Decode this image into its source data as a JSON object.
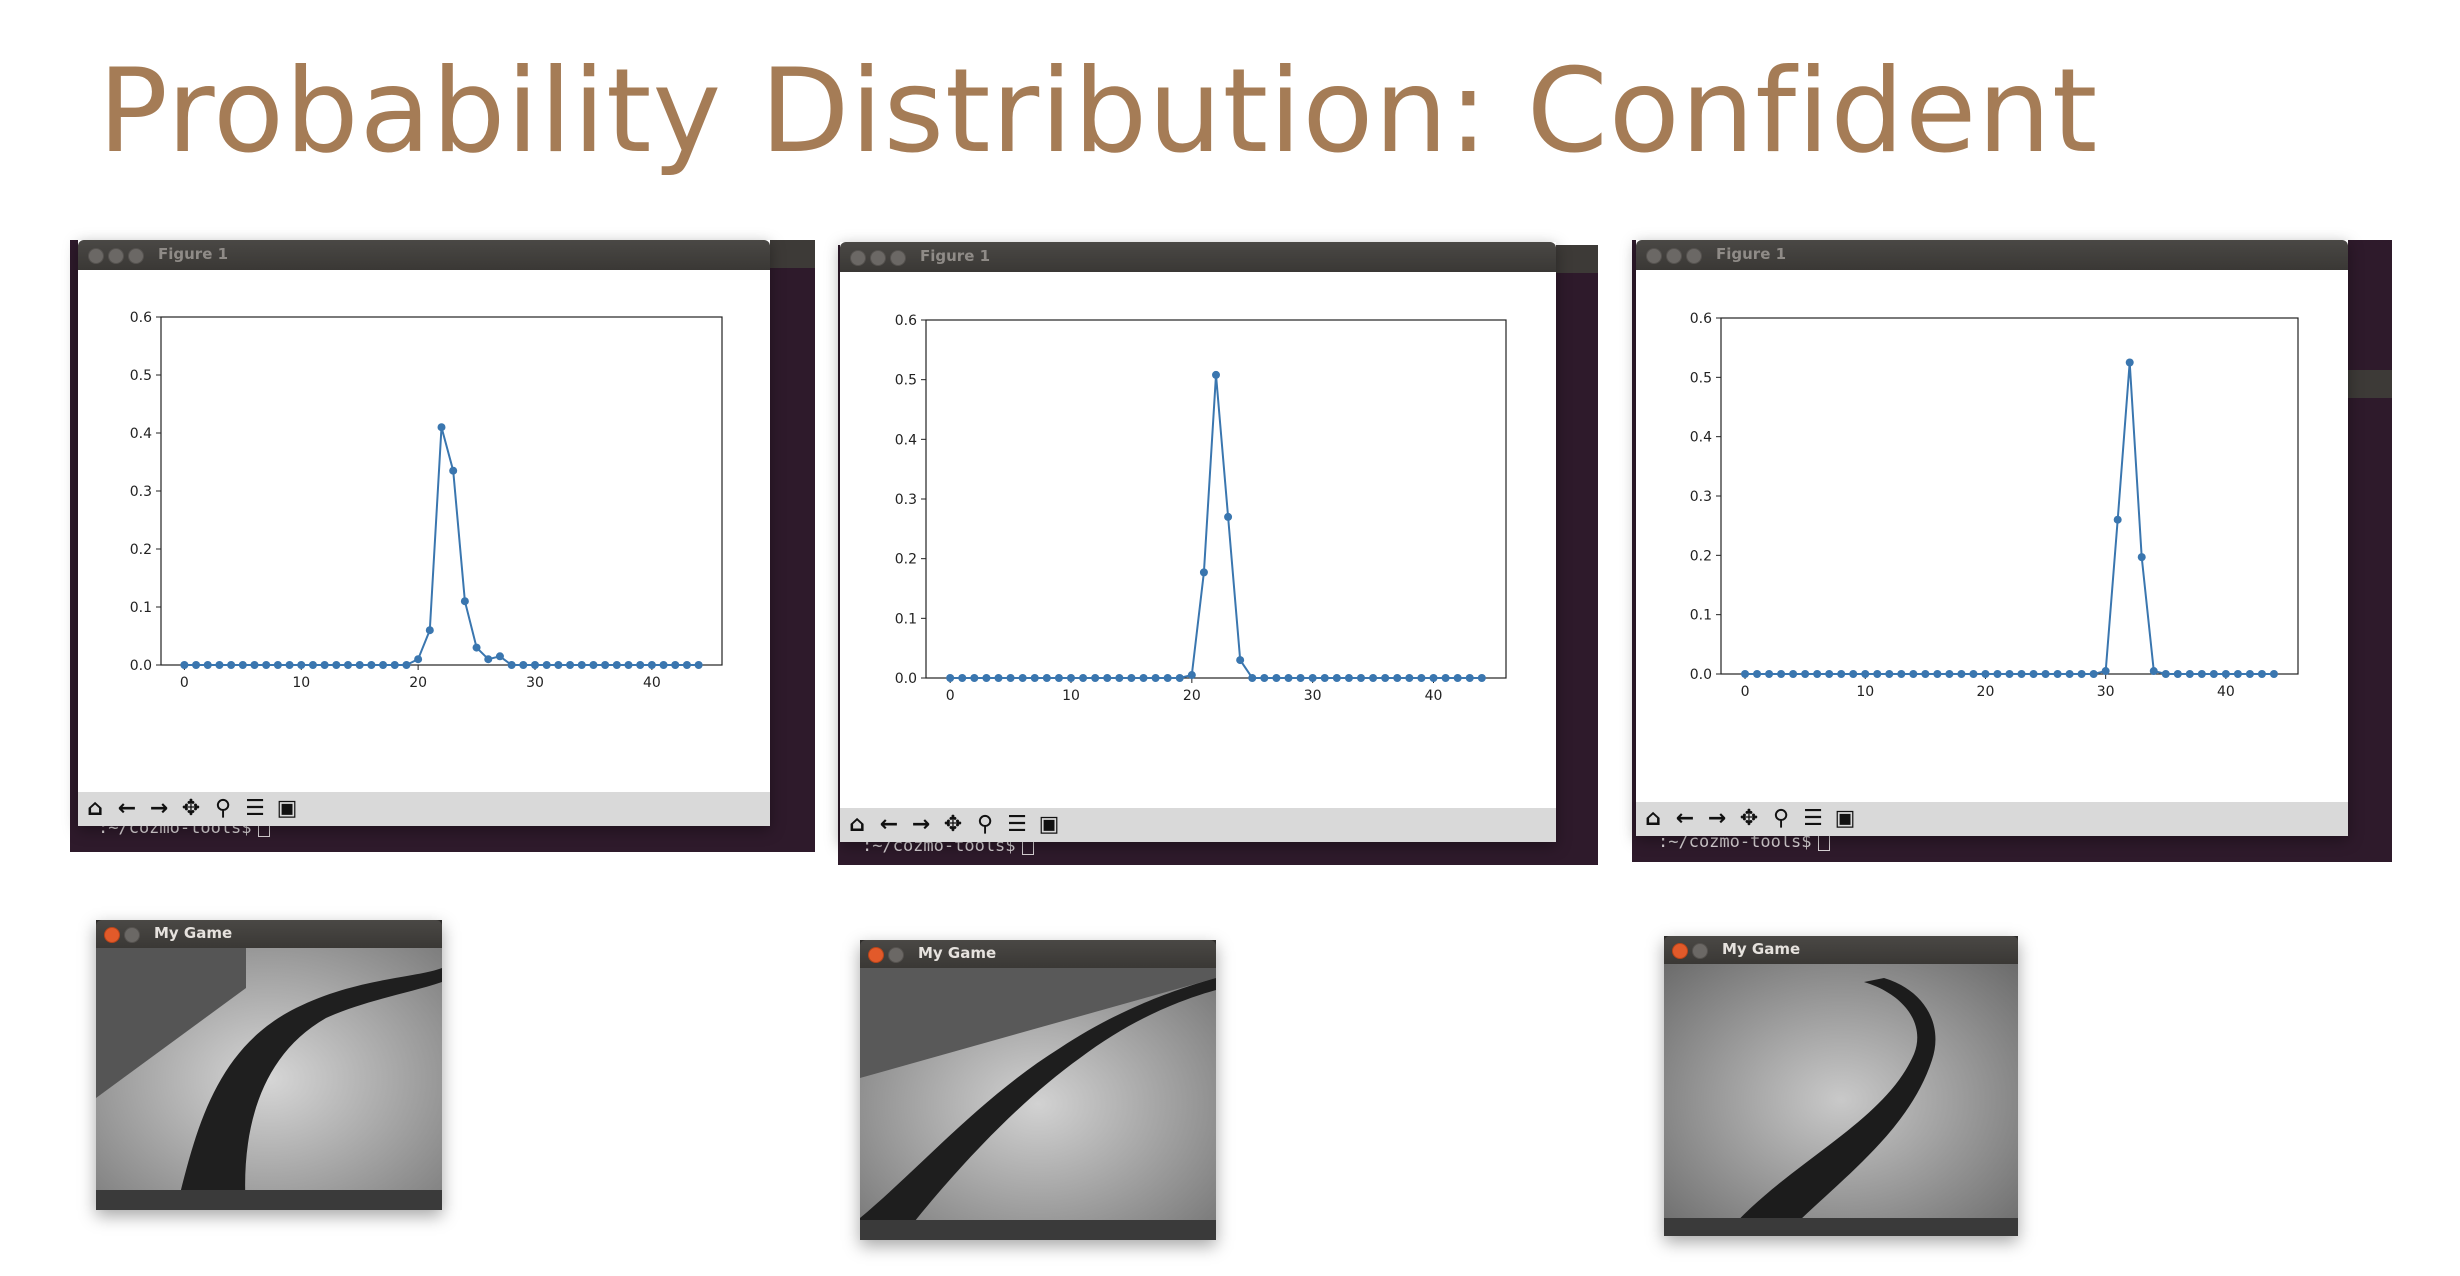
{
  "slide": {
    "title": "Probability Distribution: Confident"
  },
  "windows": {
    "figure_title": "Figure 1",
    "game_title": "My Game",
    "terminal_prompt": ":~/cozmo-tools$"
  },
  "toolbar_icons": [
    "home-icon",
    "back-arrow-icon",
    "forward-arrow-icon",
    "pan-icon",
    "zoom-icon",
    "configure-icon",
    "save-icon"
  ],
  "colors": {
    "title": "#a57c56",
    "series": "#3a76af",
    "terminal": "#2e1a2b"
  },
  "chart_data": [
    {
      "type": "line",
      "markers": true,
      "x": [
        0,
        1,
        2,
        3,
        4,
        5,
        6,
        7,
        8,
        9,
        10,
        11,
        12,
        13,
        14,
        15,
        16,
        17,
        18,
        19,
        20,
        21,
        22,
        23,
        24,
        25,
        26,
        27,
        28,
        29,
        30,
        31,
        32,
        33,
        34,
        35,
        36,
        37,
        38,
        39,
        40,
        41,
        42,
        43,
        44
      ],
      "values": [
        0,
        0,
        0,
        0,
        0,
        0,
        0,
        0,
        0,
        0,
        0,
        0,
        0,
        0,
        0,
        0,
        0,
        0,
        0,
        0,
        0.01,
        0.06,
        0.41,
        0.335,
        0.11,
        0.03,
        0.01,
        0.015,
        0,
        0,
        0,
        0,
        0,
        0,
        0,
        0,
        0,
        0,
        0,
        0,
        0,
        0,
        0,
        0,
        0
      ],
      "xlim": [
        -2,
        46
      ],
      "ylim": [
        0,
        0.6
      ],
      "xticks": [
        "0",
        "10",
        "20",
        "30",
        "40"
      ],
      "xtick_values": [
        0,
        10,
        20,
        30,
        40
      ],
      "yticks": [
        "0.0",
        "0.1",
        "0.2",
        "0.3",
        "0.4",
        "0.5",
        "0.6"
      ],
      "ytick_values": [
        0,
        0.1,
        0.2,
        0.3,
        0.4,
        0.5,
        0.6
      ],
      "grid": false
    },
    {
      "type": "line",
      "markers": true,
      "x": [
        0,
        1,
        2,
        3,
        4,
        5,
        6,
        7,
        8,
        9,
        10,
        11,
        12,
        13,
        14,
        15,
        16,
        17,
        18,
        19,
        20,
        21,
        22,
        23,
        24,
        25,
        26,
        27,
        28,
        29,
        30,
        31,
        32,
        33,
        34,
        35,
        36,
        37,
        38,
        39,
        40,
        41,
        42,
        43,
        44
      ],
      "values": [
        0,
        0,
        0,
        0,
        0,
        0,
        0,
        0,
        0,
        0,
        0,
        0,
        0,
        0,
        0,
        0,
        0,
        0,
        0,
        0,
        0.005,
        0.177,
        0.508,
        0.27,
        0.03,
        0,
        0,
        0,
        0,
        0,
        0,
        0,
        0,
        0,
        0,
        0,
        0,
        0,
        0,
        0,
        0,
        0,
        0,
        0,
        0
      ],
      "xlim": [
        -2,
        46
      ],
      "ylim": [
        0,
        0.6
      ],
      "xticks": [
        "0",
        "10",
        "20",
        "30",
        "40"
      ],
      "xtick_values": [
        0,
        10,
        20,
        30,
        40
      ],
      "yticks": [
        "0.0",
        "0.1",
        "0.2",
        "0.3",
        "0.4",
        "0.5",
        "0.6"
      ],
      "ytick_values": [
        0,
        0.1,
        0.2,
        0.3,
        0.4,
        0.5,
        0.6
      ],
      "grid": false
    },
    {
      "type": "line",
      "markers": true,
      "x": [
        0,
        1,
        2,
        3,
        4,
        5,
        6,
        7,
        8,
        9,
        10,
        11,
        12,
        13,
        14,
        15,
        16,
        17,
        18,
        19,
        20,
        21,
        22,
        23,
        24,
        25,
        26,
        27,
        28,
        29,
        30,
        31,
        32,
        33,
        34,
        35,
        36,
        37,
        38,
        39,
        40,
        41,
        42,
        43,
        44
      ],
      "values": [
        0,
        0,
        0,
        0,
        0,
        0,
        0,
        0,
        0,
        0,
        0,
        0,
        0,
        0,
        0,
        0,
        0,
        0,
        0,
        0,
        0,
        0,
        0,
        0,
        0,
        0,
        0,
        0,
        0,
        0,
        0.005,
        0.26,
        0.525,
        0.197,
        0.005,
        0,
        0,
        0,
        0,
        0,
        0,
        0,
        0,
        0,
        0
      ],
      "xlim": [
        -2,
        46
      ],
      "ylim": [
        0,
        0.6
      ],
      "xticks": [
        "0",
        "10",
        "20",
        "30",
        "40"
      ],
      "xtick_values": [
        0,
        10,
        20,
        30,
        40
      ],
      "yticks": [
        "0.0",
        "0.1",
        "0.2",
        "0.3",
        "0.4",
        "0.5",
        "0.6"
      ],
      "ytick_values": [
        0,
        0.1,
        0.2,
        0.3,
        0.4,
        0.5,
        0.6
      ],
      "grid": false
    }
  ]
}
